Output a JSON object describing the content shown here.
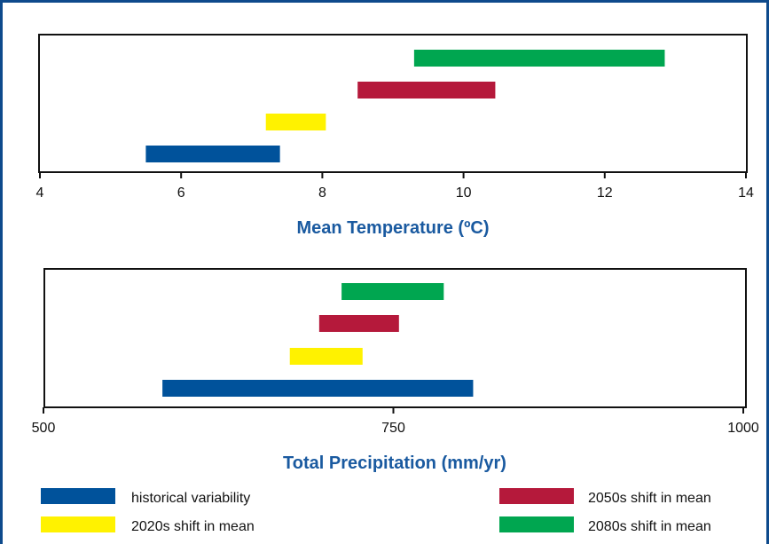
{
  "chart_data": [
    {
      "type": "bar",
      "orientation": "horizontal-range",
      "xlabel": "Mean Temperature (ºC)",
      "xlim": [
        4,
        14
      ],
      "xticks": [
        "4",
        "6",
        "8",
        "10",
        "12",
        "14"
      ],
      "grid": false,
      "bars": [
        {
          "series": "historical variability",
          "start": 5.5,
          "end": 7.4
        },
        {
          "series": "2020s shift in mean",
          "start": 7.2,
          "end": 8.05
        },
        {
          "series": "2050s shift in mean",
          "start": 8.5,
          "end": 10.45
        },
        {
          "series": "2080s shift in mean",
          "start": 9.3,
          "end": 12.85
        }
      ]
    },
    {
      "type": "bar",
      "orientation": "horizontal-range",
      "xlabel": "Total Precipitation (mm/yr)",
      "xlim": [
        500,
        1000
      ],
      "xticks": [
        "500",
        "750",
        "1000"
      ],
      "grid": false,
      "bars": [
        {
          "series": "historical variability",
          "start": 585,
          "end": 807
        },
        {
          "series": "2020s shift in mean",
          "start": 676,
          "end": 728
        },
        {
          "series": "2050s shift in mean",
          "start": 697,
          "end": 754
        },
        {
          "series": "2080s shift in mean",
          "start": 713,
          "end": 786
        }
      ]
    }
  ],
  "legend": {
    "placement": "bottom",
    "items": [
      {
        "label": "historical variability",
        "color": "#00529b"
      },
      {
        "label": "2020s shift in mean",
        "color": "#fff200"
      },
      {
        "label": "2050s shift in mean",
        "color": "#b5193b"
      },
      {
        "label": "2080s shift in mean",
        "color": "#00a650"
      }
    ]
  }
}
